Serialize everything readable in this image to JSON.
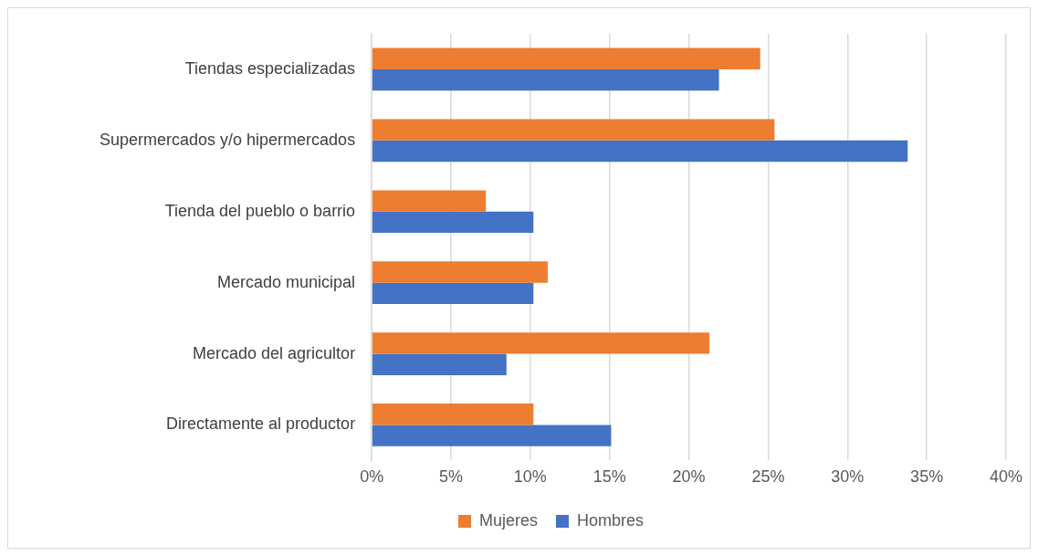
{
  "chart_data": {
    "type": "bar",
    "orientation": "horizontal",
    "categories": [
      "Tiendas especializadas",
      "Supermercados y/o hipermercados",
      "Tienda del pueblo o barrio",
      "Mercado municipal",
      "Mercado del agricultor",
      "Directamente al productor"
    ],
    "series": [
      {
        "name": "Mujeres",
        "color": "#ed7d31",
        "values": [
          24.5,
          25.4,
          7.2,
          11.1,
          21.3,
          10.2
        ]
      },
      {
        "name": "Hombres",
        "color": "#4472c4",
        "values": [
          21.9,
          33.8,
          10.2,
          10.2,
          8.5,
          15.1
        ]
      }
    ],
    "xlim": [
      0,
      40
    ],
    "xticks": [
      {
        "value": 0,
        "label": "0%"
      },
      {
        "value": 5,
        "label": "5%"
      },
      {
        "value": 10,
        "label": "10%"
      },
      {
        "value": 15,
        "label": "15%"
      },
      {
        "value": 20,
        "label": "20%"
      },
      {
        "value": 25,
        "label": "25%"
      },
      {
        "value": 30,
        "label": "30%"
      },
      {
        "value": 35,
        "label": "35%"
      },
      {
        "value": 40,
        "label": "40%"
      }
    ],
    "grid": "x",
    "legend": "bottom"
  }
}
